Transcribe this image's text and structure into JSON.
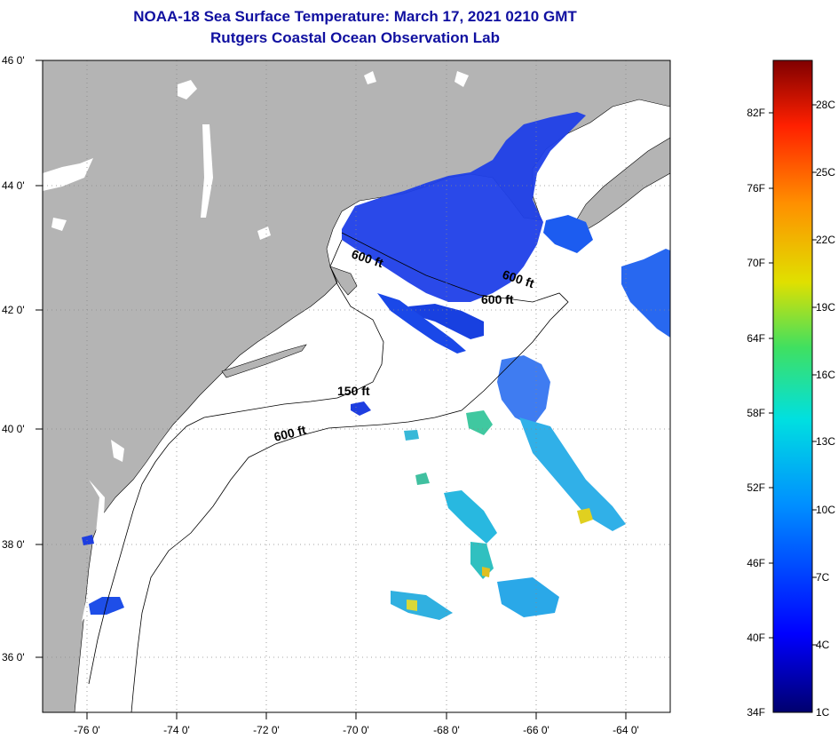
{
  "title": {
    "line1": "NOAA-18 Sea Surface Temperature:  March 17, 2021 0210 GMT",
    "line2": "Rutgers Coastal Ocean Observation Lab"
  },
  "map": {
    "lon_ticks": [
      "-76 0'",
      "-74 0'",
      "-72 0'",
      "-70 0'",
      "-68 0'",
      "-66 0'",
      "-64 0'"
    ],
    "lat_ticks": [
      "46 0'",
      "44 0'",
      "42 0'",
      "40 0'",
      "38 0'",
      "36 0'"
    ],
    "depth_labels": [
      "600 ft",
      "600 ft",
      "600 ft",
      "150 ft",
      "600 ft"
    ],
    "colors": {
      "land": "#b4b4b4",
      "ocean": "#ffffff",
      "cold": "#1a3be0"
    }
  },
  "colorbar": {
    "fahrenheit": [
      "82F",
      "76F",
      "70F",
      "64F",
      "58F",
      "52F",
      "46F",
      "40F",
      "34F"
    ],
    "celsius": [
      "28C",
      "25C",
      "22C",
      "19C",
      "16C",
      "13C",
      "10C",
      "7C",
      "4C",
      "1C"
    ],
    "gradient": [
      "#00006e",
      "#0000ff",
      "#0090ff",
      "#00e0e0",
      "#40e060",
      "#e0e000",
      "#ff9000",
      "#ff2000",
      "#800000"
    ]
  }
}
